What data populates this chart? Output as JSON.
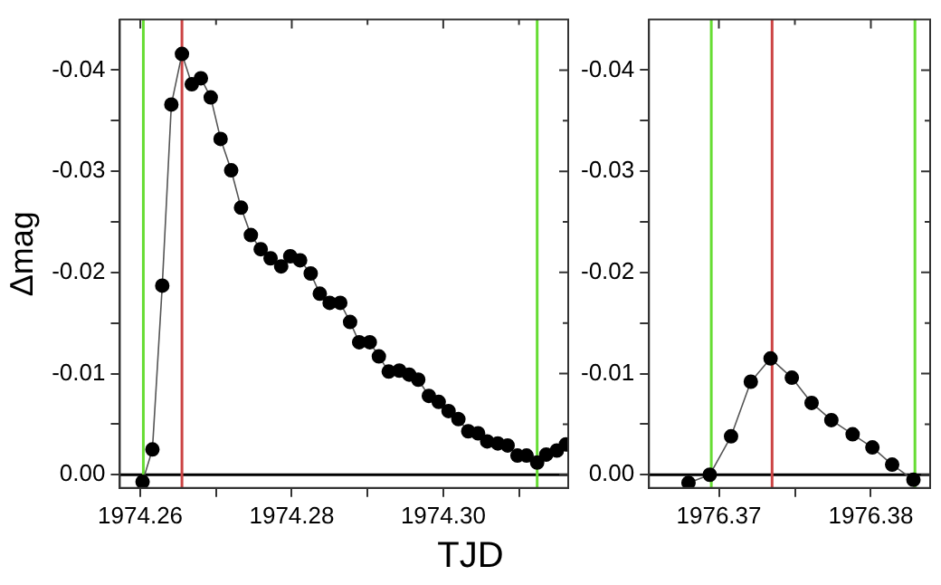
{
  "chart_data": [
    {
      "type": "line",
      "ylabel": "Δmag",
      "xlabel": "TJD",
      "marker": "circle",
      "grid": false,
      "legend": false,
      "line_style": "solid",
      "xlim": [
        1974.2573,
        1974.3165
      ],
      "xticks": [
        1974.26,
        {
          "value": 1974.27,
          "label": null
        },
        1974.28,
        {
          "value": 1974.29,
          "label": null
        },
        {
          "value": 1974.3,
          "label": "1974.30"
        },
        {
          "value": 1974.31,
          "label": null
        }
      ],
      "ylim": [
        0.0013,
        -0.045
      ],
      "yticks": [
        {
          "value": 0,
          "label": "0.00"
        },
        {
          "value": -0.005,
          "label": null
        },
        -0.01,
        {
          "value": -0.015,
          "label": null
        },
        -0.02,
        {
          "value": -0.025,
          "label": null
        },
        -0.03,
        {
          "value": -0.035,
          "label": null
        },
        -0.04
      ],
      "series": [
        {
          "color": "#000000",
          "x": [
            1974.2603,
            1974.2616,
            1974.2629,
            1974.2641,
            1974.2655,
            1974.2668,
            1974.268,
            1974.2693,
            1974.2706,
            1974.272,
            1974.2733,
            1974.2746,
            1974.2759,
            1974.2772,
            1974.2786,
            1974.2798,
            1974.2811,
            1974.2825,
            1974.2837,
            1974.285,
            1974.2864,
            1974.2877,
            1974.2889,
            1974.2903,
            1974.2915,
            1974.2928,
            1974.2942,
            1974.2955,
            1974.2967,
            1974.2981,
            1974.2994,
            1974.3007,
            1974.302,
            1974.3033,
            1974.3046,
            1974.3058,
            1974.3072,
            1974.3085,
            1974.3098,
            1974.311,
            1974.3124,
            1974.3136,
            1974.315,
            1974.3162
          ],
          "values": [
            0.0007,
            -0.0025,
            -0.0187,
            -0.0366,
            -0.0416,
            -0.0386,
            -0.0392,
            -0.0373,
            -0.0332,
            -0.0301,
            -0.0264,
            -0.0237,
            -0.0223,
            -0.0214,
            -0.0206,
            -0.0216,
            -0.0212,
            -0.0199,
            -0.0179,
            -0.017,
            -0.017,
            -0.0151,
            -0.0131,
            -0.0131,
            -0.0117,
            -0.0102,
            -0.0103,
            -0.0099,
            -0.0094,
            -0.0078,
            -0.0072,
            -0.0063,
            -0.0055,
            -0.0043,
            -0.0041,
            -0.0033,
            -0.0031,
            -0.0029,
            -0.0019,
            -0.0019,
            -0.0012,
            -0.002,
            -0.0024,
            -0.003
          ]
        }
      ],
      "ref_lines": [
        {
          "axis": "y",
          "value": 0,
          "color": "#000000"
        },
        {
          "axis": "x",
          "value": 1974.2604,
          "color": "#66dd33"
        },
        {
          "axis": "x",
          "value": 1974.2655,
          "color": "#cc4444"
        },
        {
          "axis": "x",
          "value": 1974.3124,
          "color": "#66dd33"
        }
      ]
    },
    {
      "type": "line",
      "marker": "circle",
      "grid": false,
      "legend": false,
      "line_style": "solid",
      "xlim": [
        1976.3654,
        1976.3839
      ],
      "xticks": [
        1976.37,
        {
          "value": 1976.375,
          "label": null
        },
        1976.38
      ],
      "ylim": [
        0.0013,
        -0.045
      ],
      "yticks": [
        {
          "value": 0,
          "label": "0.00"
        },
        {
          "value": -0.005,
          "label": null
        },
        -0.01,
        {
          "value": -0.015,
          "label": null
        },
        -0.02,
        {
          "value": -0.025,
          "label": null
        },
        -0.03,
        {
          "value": -0.035,
          "label": null
        },
        -0.04
      ],
      "series": [
        {
          "color": "#000000",
          "x": [
            1976.368,
            1976.3694,
            1976.3708,
            1976.3721,
            1976.3734,
            1976.3748,
            1976.3761,
            1976.3774,
            1976.3788,
            1976.3801,
            1976.3814,
            1976.3828
          ],
          "values": [
            0.0008,
            0,
            -0.0038,
            -0.0092,
            -0.0115,
            -0.0096,
            -0.0071,
            -0.0054,
            -0.004,
            -0.0027,
            -0.001,
            0.0005
          ]
        }
      ],
      "ref_lines": [
        {
          "axis": "y",
          "value": 0,
          "color": "#000000"
        },
        {
          "axis": "x",
          "value": 1976.3695,
          "color": "#66dd33"
        },
        {
          "axis": "x",
          "value": 1976.3735,
          "color": "#cc4444"
        },
        {
          "axis": "x",
          "value": 1976.3829,
          "color": "#66dd33"
        }
      ]
    }
  ]
}
